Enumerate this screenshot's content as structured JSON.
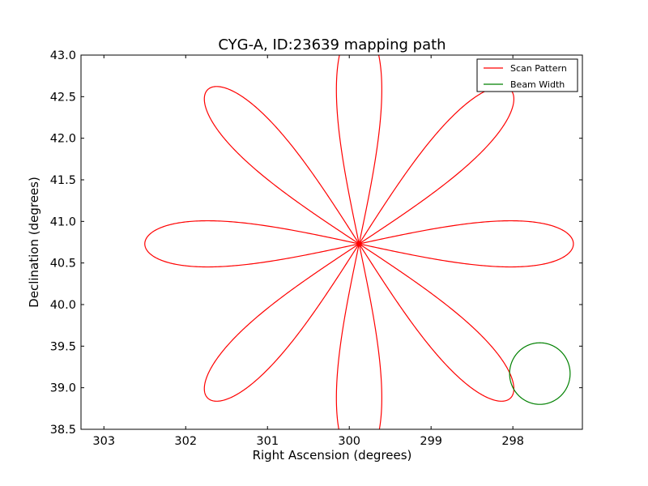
{
  "chart_data": {
    "type": "line",
    "title": "CYG-A, ID:23639 mapping path",
    "xlabel": "Right Ascension (degrees)",
    "ylabel": "Declination (degrees)",
    "xlim": [
      303.28,
      297.15
    ],
    "ylim": [
      38.5,
      43.0
    ],
    "x_axis_inverted": true,
    "x_ticks": [
      303,
      302,
      301,
      300,
      299,
      298
    ],
    "x_tick_labels": [
      "303",
      "302",
      "301",
      "300",
      "299",
      "298"
    ],
    "y_ticks": [
      38.5,
      39.0,
      39.5,
      40.0,
      40.5,
      41.0,
      41.5,
      42.0,
      42.5,
      43.0
    ],
    "y_tick_labels": [
      "38.5",
      "39.0",
      "39.5",
      "40.0",
      "40.5",
      "41.0",
      "41.5",
      "42.0",
      "42.5",
      "43.0"
    ],
    "grid": false,
    "legend_position": "top-right",
    "series": [
      {
        "name": "Scan Pattern",
        "color": "#ff0000",
        "shape": "rose_8_petal",
        "center": [
          299.88,
          40.73
        ],
        "petal_length_deg": 2.62,
        "petal_half_width_deg": 0.37,
        "petal_count": 8
      },
      {
        "name": "Beam Width",
        "color": "#008000",
        "shape": "circle",
        "center": [
          297.67,
          39.17
        ],
        "radius_deg": 0.37
      }
    ]
  }
}
